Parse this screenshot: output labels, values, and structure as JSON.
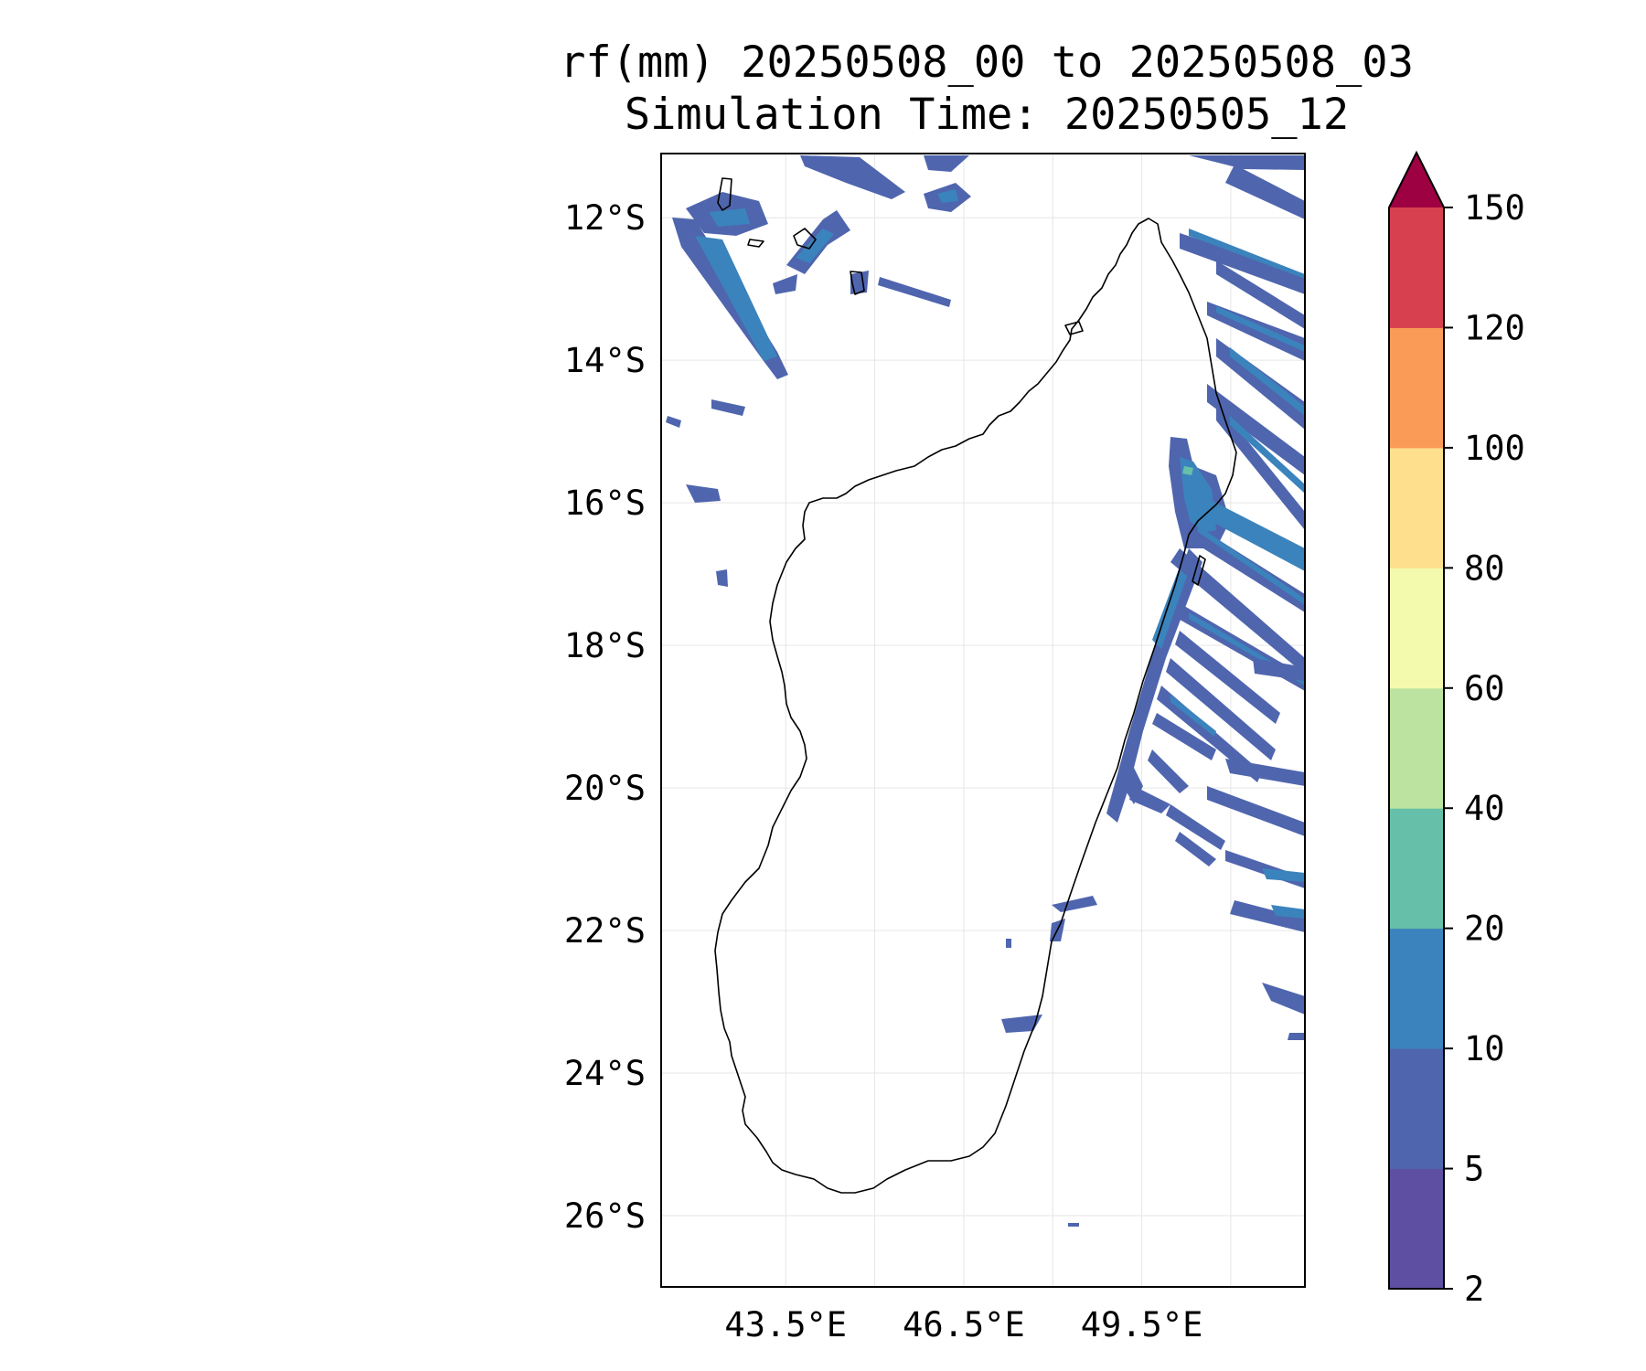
{
  "title": {
    "line1": "rf(mm) 20250508_00 to 20250508_03",
    "line2": "Simulation Time: 20250505_12"
  },
  "map": {
    "lon_range": [
      41.4,
      52.25
    ],
    "lat_range": [
      -27.0,
      -11.1
    ],
    "gridlines": true,
    "lat_ticks": [
      {
        "value": -12,
        "label": "12°S"
      },
      {
        "value": -14,
        "label": "14°S"
      },
      {
        "value": -16,
        "label": "16°S"
      },
      {
        "value": -18,
        "label": "18°S"
      },
      {
        "value": -20,
        "label": "20°S"
      },
      {
        "value": -22,
        "label": "22°S"
      },
      {
        "value": -24,
        "label": "24°S"
      },
      {
        "value": -26,
        "label": "26°S"
      }
    ],
    "lon_ticks": [
      {
        "value": 43.5,
        "label": "43.5°E"
      },
      {
        "value": 46.5,
        "label": "46.5°E"
      },
      {
        "value": 49.5,
        "label": "49.5°E"
      }
    ],
    "extra_grid_lons": [
      45.0,
      48.0,
      51.0
    ],
    "coastline_color": "#000000"
  },
  "colorbar": {
    "levels": [
      {
        "label": "2",
        "color": "#5e4fa2"
      },
      {
        "label": "5",
        "color": "#4f65ae"
      },
      {
        "label": "10",
        "color": "#3b83bc"
      },
      {
        "label": "20",
        "color": "#66c0a9"
      },
      {
        "label": "40",
        "color": "#bde3a1"
      },
      {
        "label": "60",
        "color": "#f3faad"
      },
      {
        "label": "80",
        "color": "#fddf8d"
      },
      {
        "label": "100",
        "color": "#fa9c58"
      },
      {
        "label": "120",
        "color": "#d7404e"
      },
      {
        "label": "150",
        "color": "#9e0142"
      }
    ],
    "extend": "max",
    "extend_color": "#9e0142"
  }
}
